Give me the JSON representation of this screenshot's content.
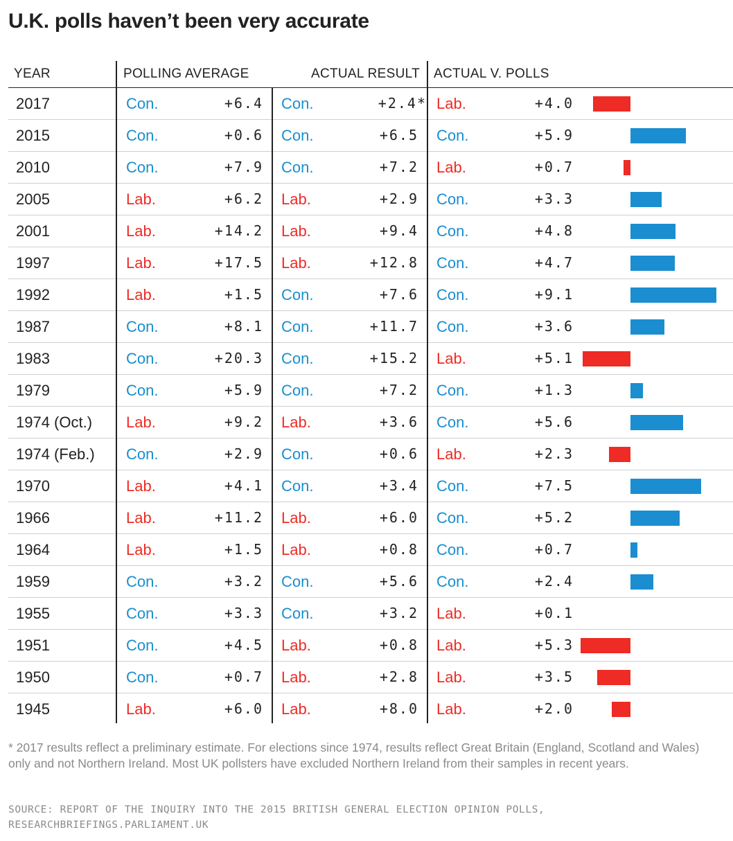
{
  "title": "U.K. polls haven’t been very accurate",
  "headers": {
    "year": "YEAR",
    "polling_average": "POLLING AVERAGE",
    "actual_result": "ACTUAL RESULT",
    "actual_v_polls": "ACTUAL V. POLLS"
  },
  "colors": {
    "con": "#1a8ed0",
    "lab": "#ee2b24"
  },
  "chart_data": {
    "type": "table",
    "columns": [
      "YEAR",
      "POLLING AVERAGE",
      "ACTUAL RESULT",
      "ACTUAL V. POLLS"
    ],
    "rows": [
      {
        "year": "2017",
        "poll_party": "Con.",
        "poll_value": "+6.4",
        "actual_party": "Con.",
        "actual_value": "+2.4*",
        "diff_party": "Lab.",
        "diff_value": "+4.0",
        "diff": 4.0
      },
      {
        "year": "2015",
        "poll_party": "Con.",
        "poll_value": "+0.6",
        "actual_party": "Con.",
        "actual_value": "+6.5",
        "diff_party": "Con.",
        "diff_value": "+5.9",
        "diff": 5.9
      },
      {
        "year": "2010",
        "poll_party": "Con.",
        "poll_value": "+7.9",
        "actual_party": "Con.",
        "actual_value": "+7.2",
        "diff_party": "Lab.",
        "diff_value": "+0.7",
        "diff": 0.7
      },
      {
        "year": "2005",
        "poll_party": "Lab.",
        "poll_value": "+6.2",
        "actual_party": "Lab.",
        "actual_value": "+2.9",
        "diff_party": "Con.",
        "diff_value": "+3.3",
        "diff": 3.3
      },
      {
        "year": "2001",
        "poll_party": "Lab.",
        "poll_value": "+14.2",
        "actual_party": "Lab.",
        "actual_value": "+9.4",
        "diff_party": "Con.",
        "diff_value": "+4.8",
        "diff": 4.8
      },
      {
        "year": "1997",
        "poll_party": "Lab.",
        "poll_value": "+17.5",
        "actual_party": "Lab.",
        "actual_value": "+12.8",
        "diff_party": "Con.",
        "diff_value": "+4.7",
        "diff": 4.7
      },
      {
        "year": "1992",
        "poll_party": "Lab.",
        "poll_value": "+1.5",
        "actual_party": "Con.",
        "actual_value": "+7.6",
        "diff_party": "Con.",
        "diff_value": "+9.1",
        "diff": 9.1
      },
      {
        "year": "1987",
        "poll_party": "Con.",
        "poll_value": "+8.1",
        "actual_party": "Con.",
        "actual_value": "+11.7",
        "diff_party": "Con.",
        "diff_value": "+3.6",
        "diff": 3.6
      },
      {
        "year": "1983",
        "poll_party": "Con.",
        "poll_value": "+20.3",
        "actual_party": "Con.",
        "actual_value": "+15.2",
        "diff_party": "Lab.",
        "diff_value": "+5.1",
        "diff": 5.1
      },
      {
        "year": "1979",
        "poll_party": "Con.",
        "poll_value": "+5.9",
        "actual_party": "Con.",
        "actual_value": "+7.2",
        "diff_party": "Con.",
        "diff_value": "+1.3",
        "diff": 1.3
      },
      {
        "year": "1974 (Oct.)",
        "poll_party": "Lab.",
        "poll_value": "+9.2",
        "actual_party": "Lab.",
        "actual_value": "+3.6",
        "diff_party": "Con.",
        "diff_value": "+5.6",
        "diff": 5.6
      },
      {
        "year": "1974 (Feb.)",
        "poll_party": "Con.",
        "poll_value": "+2.9",
        "actual_party": "Con.",
        "actual_value": "+0.6",
        "diff_party": "Lab.",
        "diff_value": "+2.3",
        "diff": 2.3
      },
      {
        "year": "1970",
        "poll_party": "Lab.",
        "poll_value": "+4.1",
        "actual_party": "Con.",
        "actual_value": "+3.4",
        "diff_party": "Con.",
        "diff_value": "+7.5",
        "diff": 7.5
      },
      {
        "year": "1966",
        "poll_party": "Lab.",
        "poll_value": "+11.2",
        "actual_party": "Lab.",
        "actual_value": "+6.0",
        "diff_party": "Con.",
        "diff_value": "+5.2",
        "diff": 5.2
      },
      {
        "year": "1964",
        "poll_party": "Lab.",
        "poll_value": "+1.5",
        "actual_party": "Lab.",
        "actual_value": "+0.8",
        "diff_party": "Con.",
        "diff_value": "+0.7",
        "diff": 0.7
      },
      {
        "year": "1959",
        "poll_party": "Con.",
        "poll_value": "+3.2",
        "actual_party": "Con.",
        "actual_value": "+5.6",
        "diff_party": "Con.",
        "diff_value": "+2.4",
        "diff": 2.4
      },
      {
        "year": "1955",
        "poll_party": "Con.",
        "poll_value": "+3.3",
        "actual_party": "Con.",
        "actual_value": "+3.2",
        "diff_party": "Lab.",
        "diff_value": "+0.1",
        "diff": 0.1
      },
      {
        "year": "1951",
        "poll_party": "Con.",
        "poll_value": "+4.5",
        "actual_party": "Lab.",
        "actual_value": "+0.8",
        "diff_party": "Lab.",
        "diff_value": "+5.3",
        "diff": 5.3
      },
      {
        "year": "1950",
        "poll_party": "Con.",
        "poll_value": "+0.7",
        "actual_party": "Lab.",
        "actual_value": "+2.8",
        "diff_party": "Lab.",
        "diff_value": "+3.5",
        "diff": 3.5
      },
      {
        "year": "1945",
        "poll_party": "Lab.",
        "poll_value": "+6.0",
        "actual_party": "Lab.",
        "actual_value": "+8.0",
        "diff_party": "Lab.",
        "diff_value": "+2.0",
        "diff": 2.0
      }
    ]
  },
  "footnote": "* 2017 results reflect a preliminary estimate. For elections since 1974, results reflect Great Britain (England, Scotland and Wales) only and not Northern Ireland. Most UK pollsters have excluded Northern Ireland from their samples in recent years.",
  "source": "SOURCE: REPORT OF THE INQUIRY INTO THE 2015 BRITISH GENERAL ELECTION OPINION POLLS, RESEARCHBRIEFINGS.PARLIAMENT.UK"
}
